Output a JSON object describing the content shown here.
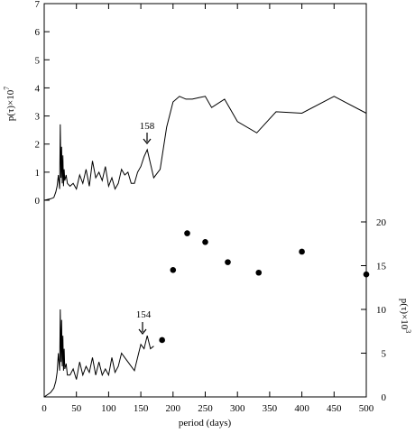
{
  "chart_data": [
    {
      "type": "line",
      "panel": "upper",
      "ylabel": "p(τ)×10",
      "ylabel_exponent": "7",
      "yticks": [
        0,
        1,
        2,
        3,
        4,
        5,
        6,
        7
      ],
      "ylim": [
        0,
        7
      ],
      "x": [
        0,
        10,
        15,
        18,
        20,
        22,
        24,
        25,
        26,
        27,
        28,
        29,
        30,
        31,
        32,
        34,
        36,
        40,
        45,
        50,
        55,
        60,
        65,
        70,
        75,
        80,
        85,
        90,
        95,
        100,
        105,
        110,
        115,
        120,
        125,
        130,
        135,
        140,
        145,
        150,
        155,
        160,
        165,
        170,
        180,
        190,
        200,
        210,
        220,
        230,
        240,
        250,
        260,
        280,
        300,
        330,
        360,
        400,
        450,
        500
      ],
      "values": [
        0,
        0.05,
        0.1,
        0.3,
        0.5,
        0.9,
        0.4,
        2.7,
        0.8,
        1.9,
        0.6,
        1.6,
        0.5,
        1.1,
        0.7,
        0.9,
        0.6,
        0.5,
        0.6,
        0.4,
        0.9,
        0.6,
        1.1,
        0.5,
        1.4,
        0.8,
        1.0,
        0.7,
        1.2,
        0.5,
        0.8,
        0.4,
        0.6,
        1.1,
        0.9,
        1.0,
        0.6,
        0.6,
        1.0,
        1.2,
        1.55,
        1.8,
        1.3,
        0.8,
        1.1,
        2.6,
        3.5,
        3.7,
        3.6,
        3.6,
        3.65,
        3.7,
        3.3,
        3.6,
        2.8,
        2.4,
        3.15,
        3.1,
        3.7,
        3.1
      ],
      "annotation": {
        "text": "158",
        "x": 158
      }
    },
    {
      "type": "line",
      "panel": "lower",
      "ylabel": "p(τ)×10",
      "ylabel_exponent": "3",
      "yticks": [
        0,
        5,
        10,
        15,
        20
      ],
      "ylim": [
        0,
        20
      ],
      "x": [
        0,
        10,
        15,
        18,
        20,
        22,
        24,
        25,
        26,
        27,
        28,
        29,
        30,
        31,
        32,
        34,
        36,
        40,
        45,
        50,
        55,
        60,
        65,
        70,
        75,
        80,
        85,
        90,
        95,
        100,
        105,
        110,
        115,
        120,
        125,
        130,
        135,
        140,
        145,
        150,
        155,
        160,
        165,
        170
      ],
      "values": [
        0,
        0.5,
        1,
        1.8,
        2.8,
        5,
        3,
        10,
        4,
        8.8,
        3.5,
        7,
        3,
        5.5,
        3.2,
        3.8,
        2.5,
        2.5,
        3.2,
        2,
        4,
        2.5,
        3.5,
        2.8,
        4.5,
        2.5,
        4,
        2.5,
        3.2,
        2.5,
        4.5,
        2.8,
        3.5,
        5,
        4.5,
        4,
        3.5,
        3,
        4.5,
        6,
        5.5,
        7,
        5.5,
        5.8
      ],
      "annotation": {
        "text": "154",
        "x": 154
      },
      "scatter": {
        "x": [
          183,
          200,
          222,
          250,
          285,
          333,
          400,
          500
        ],
        "values": [
          6.5,
          14.5,
          18.7,
          17.7,
          15.4,
          14.2,
          16.6,
          14
        ]
      }
    }
  ],
  "xaxis": {
    "label": "period (days)",
    "ticks": [
      0,
      50,
      100,
      150,
      200,
      250,
      300,
      350,
      400,
      450,
      500
    ],
    "xlim": [
      0,
      500
    ]
  },
  "colors": {
    "line": "#000000",
    "axis": "#000000",
    "background": "#ffffff"
  }
}
